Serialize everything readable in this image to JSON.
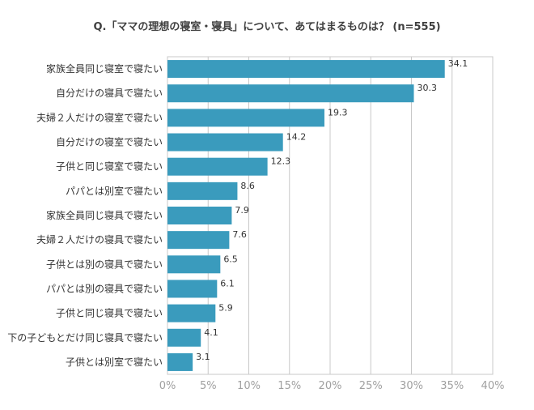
{
  "chart_data": {
    "type": "bar",
    "orientation": "horizontal",
    "title": "Q.「ママの理想の寝室・寝具」について、あてはまるものは？ (n=555)",
    "categories": [
      "家族全員同じ寝室で寝たい",
      "自分だけの寝具で寝たい",
      "夫婦２人だけの寝室で寝たい",
      "自分だけの寝室で寝たい",
      "子供と同じ寝室で寝たい",
      "パパとは別室で寝たい",
      "家族全員同じ寝具で寝たい",
      "夫婦２人だけの寝具で寝たい",
      "子供とは別の寝具で寝たい",
      "パパとは別の寝具で寝たい",
      "子供と同じ寝具で寝たい",
      "下の子どもとだけ同じ寝具で寝たい",
      "子供とは別室で寝たい"
    ],
    "values": [
      34.1,
      30.3,
      19.3,
      14.2,
      12.3,
      8.6,
      7.9,
      7.6,
      6.5,
      6.1,
      5.9,
      4.1,
      3.1
    ],
    "value_labels": [
      "34.1",
      "30.3",
      "19.3",
      "14.2",
      "12.3",
      "8.6",
      "7.9",
      "7.6",
      "6.5",
      "6.1",
      "5.9",
      "4.1",
      "3.1"
    ],
    "xlim": [
      0,
      40
    ],
    "xticks": [
      0,
      5,
      10,
      15,
      20,
      25,
      30,
      35,
      40
    ],
    "xtick_labels": [
      "0%",
      "5%",
      "10%",
      "15%",
      "20%",
      "25%",
      "30%",
      "35%",
      "40%"
    ],
    "grid": true,
    "bar_color": "#3a9bbd",
    "grid_color": "#c8c8c8"
  }
}
